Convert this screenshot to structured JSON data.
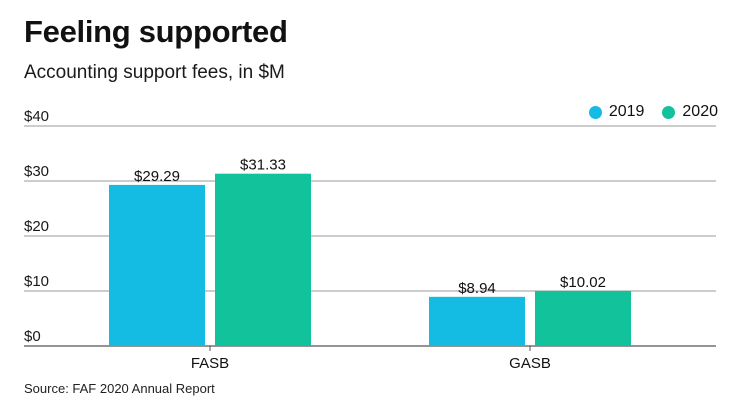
{
  "title": "Feeling supported",
  "subtitle": "Accounting support fees, in $M",
  "source": "Source: FAF 2020 Annual Report",
  "colors": {
    "2019": "#14bce4",
    "2020": "#12c29b"
  },
  "chart_data": {
    "type": "bar",
    "categories": [
      "FASB",
      "GASB"
    ],
    "series": [
      {
        "name": "2019",
        "values": [
          29.29,
          8.94
        ],
        "labels": [
          "$29.29",
          "$8.94"
        ]
      },
      {
        "name": "2020",
        "values": [
          31.33,
          10.02
        ],
        "labels": [
          "$31.33",
          "$10.02"
        ]
      }
    ],
    "ylim": [
      0,
      40
    ],
    "yticks": [
      0,
      10,
      20,
      30,
      40
    ],
    "ytick_labels": [
      "$0",
      "$10",
      "$20",
      "$30",
      "$40"
    ],
    "grid": true,
    "legend": "top-right"
  }
}
